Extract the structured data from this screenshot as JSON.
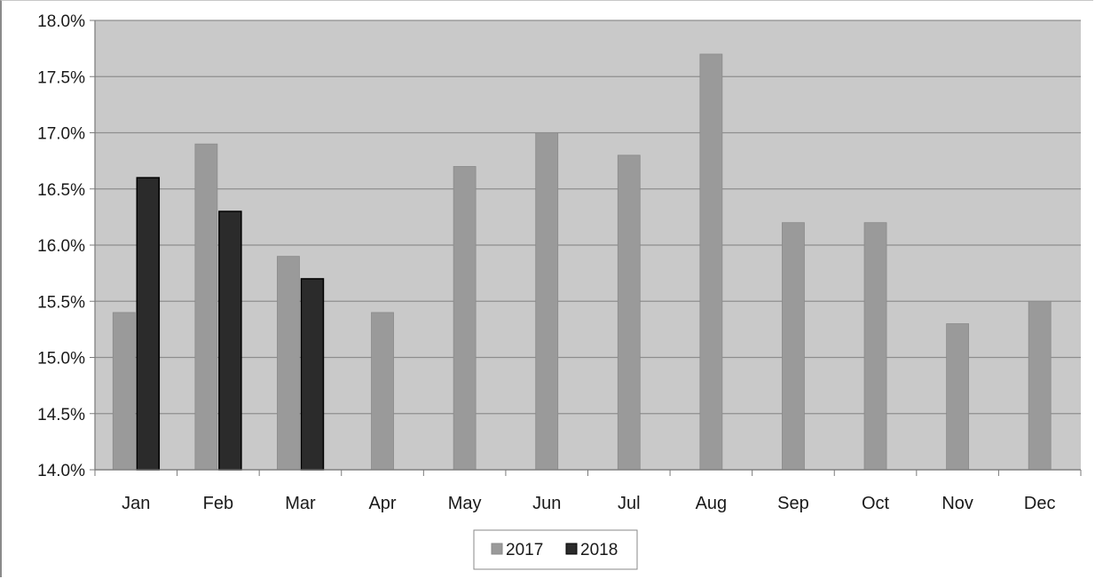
{
  "colors": {
    "plot_bg": "#c9c9c9",
    "gridline": "#8e8e8e",
    "axis": "#7a7a7a",
    "series_2017": "#9a9a9a",
    "series_2018": "#2b2b2b"
  },
  "chart_data": {
    "type": "bar",
    "title": "",
    "xlabel": "",
    "ylabel": "",
    "categories": [
      "Jan",
      "Feb",
      "Mar",
      "Apr",
      "May",
      "Jun",
      "Jul",
      "Aug",
      "Sep",
      "Oct",
      "Nov",
      "Dec"
    ],
    "ylim": [
      14.0,
      18.0
    ],
    "yticks": [
      14.0,
      14.5,
      15.0,
      15.5,
      16.0,
      16.5,
      17.0,
      17.5,
      18.0
    ],
    "ytick_labels": [
      "14.0%",
      "14.5%",
      "15.0%",
      "15.5%",
      "16.0%",
      "16.5%",
      "17.0%",
      "17.5%",
      "18.0%"
    ],
    "grid": true,
    "legend_position": "bottom",
    "series": [
      {
        "name": "2017",
        "values": [
          15.4,
          16.9,
          15.9,
          15.4,
          16.7,
          17.0,
          16.8,
          17.7,
          16.2,
          16.2,
          15.3,
          15.5
        ]
      },
      {
        "name": "2018",
        "values": [
          16.6,
          16.3,
          15.7,
          null,
          null,
          null,
          null,
          null,
          null,
          null,
          null,
          null
        ]
      }
    ]
  }
}
